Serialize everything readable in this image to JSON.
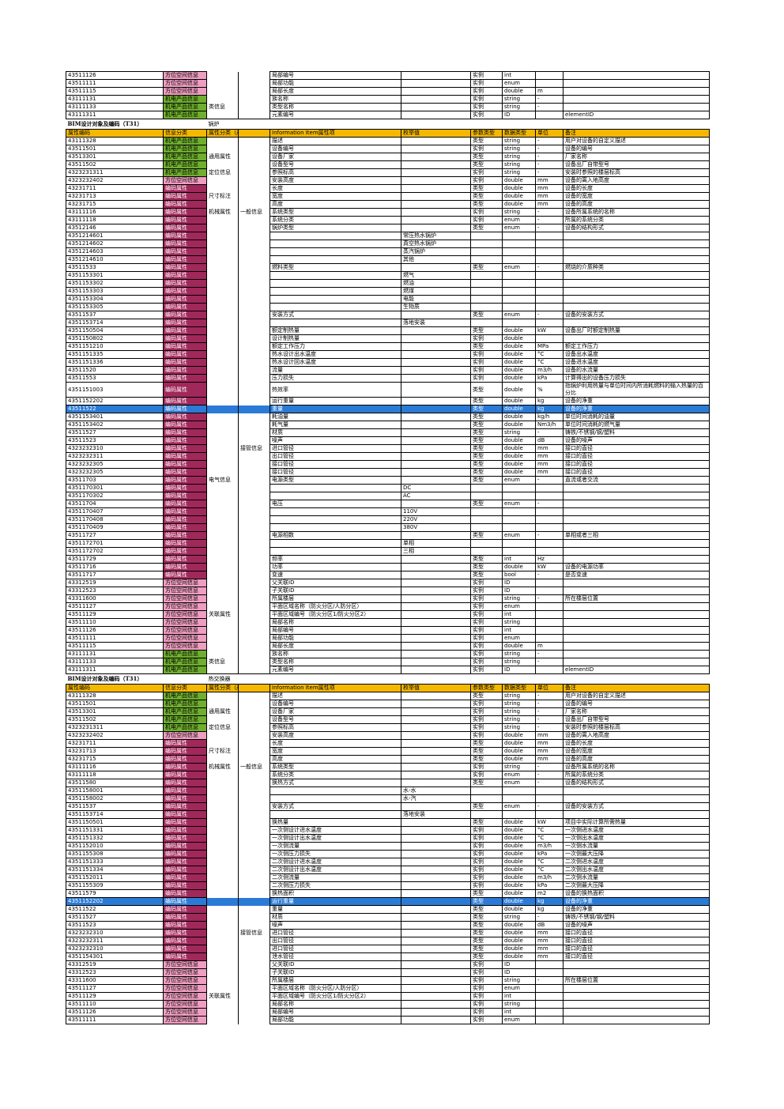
{
  "columns": [
    "属性编码",
    "信息分类",
    "属性分类（产品）",
    "",
    "Information Item属性项",
    "枚举值",
    "参数类型",
    "数据类型",
    "单位",
    "备注"
  ],
  "categories": {
    "loc": "方位空间信息",
    "prod": "机电产品信息",
    "code": "编码属性"
  },
  "rows": [
    {
      "type": "row",
      "code": "43511126",
      "cat": "loc",
      "c4": "局部编号",
      "c6": "实例",
      "c7": "int"
    },
    {
      "type": "row",
      "code": "43511111",
      "cat": "loc",
      "c4": "局部功能",
      "c6": "实例",
      "c7": "enum"
    },
    {
      "type": "row",
      "code": "43511115",
      "cat": "loc",
      "c4": "局部长度",
      "c6": "实例",
      "c7": "double",
      "c8": "m"
    },
    {
      "type": "row",
      "code": "43111131",
      "cat": "prod",
      "c2": "",
      "c4": "族名称",
      "c6": "实例",
      "c7": "string",
      "c8": "-"
    },
    {
      "type": "row",
      "code": "43111133",
      "cat": "prod",
      "c2": "类信息",
      "c4": "类型名称",
      "c6": "实例",
      "c7": "string",
      "c8": "-"
    },
    {
      "type": "row",
      "code": "43111311",
      "cat": "prod",
      "c4": "元素编号",
      "c6": "实例",
      "c7": "ID",
      "c9": "elementID"
    },
    {
      "type": "title",
      "text": "BIM设计对象及编码（T31）",
      "sub": "锅炉"
    },
    {
      "type": "hdr"
    },
    {
      "type": "row",
      "code": "43111328",
      "cat": "prod",
      "c4": "描述",
      "c6": "类型",
      "c7": "string",
      "c8": "-",
      "c9": "用户对设备的自定义描述"
    },
    {
      "type": "row",
      "code": "43511501",
      "cat": "prod",
      "c2": "",
      "c4": "设备编号",
      "c6": "实例",
      "c7": "string",
      "c8": "-",
      "c9": "设备的编号"
    },
    {
      "type": "row",
      "code": "43513301",
      "cat": "prod",
      "c2": "通用属性",
      "c4": "设备厂家",
      "c6": "类型",
      "c7": "string",
      "c8": "-",
      "c9": "厂家名称"
    },
    {
      "type": "row",
      "code": "43511502",
      "cat": "prod",
      "c4": "设备型号",
      "c6": "类型",
      "c7": "string",
      "c8": "-",
      "c9": "设备出厂自带型号"
    },
    {
      "type": "row",
      "code": "4323231311",
      "cat": "prod",
      "c2": "定位信息",
      "c4": "参照标高",
      "c6": "实例",
      "c7": "string",
      "c8": "-",
      "c9": "安装时参照的楼层标高"
    },
    {
      "type": "row",
      "code": "4323232402",
      "cat": "loc",
      "c4": "安装高度",
      "c6": "实例",
      "c7": "double",
      "c8": "mm",
      "c9": "设备的离入地高度"
    },
    {
      "type": "row",
      "code": "43231711",
      "cat": "code",
      "c4": "长度",
      "c6": "类型",
      "c7": "double",
      "c8": "mm",
      "c9": "设备的长度"
    },
    {
      "type": "row",
      "code": "43231713",
      "cat": "code",
      "c2": "尺寸标注",
      "c4": "宽度",
      "c6": "类型",
      "c7": "double",
      "c8": "mm",
      "c9": "设备的宽度"
    },
    {
      "type": "row",
      "code": "43231715",
      "cat": "code",
      "c4": "高度",
      "c6": "类型",
      "c7": "double",
      "c8": "mm",
      "c9": "设备的高度"
    },
    {
      "type": "row",
      "code": "43111116",
      "cat": "code",
      "c2": "机械属性",
      "c3": "一般信息",
      "c4": "系统类型",
      "c6": "实例",
      "c7": "string",
      "c8": "-",
      "c9": "设备所属系统的名称"
    },
    {
      "type": "row",
      "code": "43111118",
      "cat": "code",
      "c4": "系统分类",
      "c6": "实例",
      "c7": "enum",
      "c8": "-",
      "c9": "所属的系统分类"
    },
    {
      "type": "row",
      "code": "43512146",
      "cat": "code",
      "c4": "锅炉类型",
      "c6": "类型",
      "c7": "enum",
      "c8": "-",
      "c9": "设备的结构形式"
    },
    {
      "type": "row",
      "code": "4351214601",
      "cat": "code",
      "c5": "常压热水锅炉"
    },
    {
      "type": "row",
      "code": "4351214602",
      "cat": "code",
      "c5": "真空热水锅炉"
    },
    {
      "type": "row",
      "code": "4351214603",
      "cat": "code",
      "c5": "蒸汽锅炉"
    },
    {
      "type": "row",
      "code": "4351214610",
      "cat": "code",
      "c5": "其他"
    },
    {
      "type": "row",
      "code": "43511533",
      "cat": "code",
      "c4": "燃料类型",
      "c6": "类型",
      "c7": "enum",
      "c8": "-",
      "c9": "燃烧的介质种类"
    },
    {
      "type": "row",
      "code": "4351153301",
      "cat": "code",
      "c5": "燃气"
    },
    {
      "type": "row",
      "code": "4351153302",
      "cat": "code",
      "c5": "燃油"
    },
    {
      "type": "row",
      "code": "4351153303",
      "cat": "code",
      "c5": "燃煤"
    },
    {
      "type": "row",
      "code": "4351153304",
      "cat": "code",
      "c5": "电能"
    },
    {
      "type": "row",
      "code": "4351153305",
      "cat": "code",
      "c5": "生物质"
    },
    {
      "type": "row",
      "code": "43511537",
      "cat": "code",
      "c4": "安装方式",
      "c6": "类型",
      "c7": "enum",
      "c8": "-",
      "c9": "设备的安装方式"
    },
    {
      "type": "row",
      "code": "4351153714",
      "cat": "code",
      "c5": "落地安装"
    },
    {
      "type": "row",
      "code": "4351150504",
      "cat": "code",
      "c4": "额定制热量",
      "c6": "类型",
      "c7": "double",
      "c8": "kW",
      "c9": "设备出厂时额定制热量"
    },
    {
      "type": "row",
      "code": "4351150802",
      "cat": "code",
      "c4": "设计制热量",
      "c6": "实例",
      "c7": "double"
    },
    {
      "type": "row",
      "code": "4351151210",
      "cat": "code",
      "c4": "额定工作压力",
      "c6": "类型",
      "c7": "double",
      "c8": "MPa",
      "c9": "额定工作压力"
    },
    {
      "type": "row",
      "code": "4351151335",
      "cat": "code",
      "c4": "热水设计出水温度",
      "c6": "实例",
      "c7": "double",
      "c8": "°C",
      "c9": "设备出水温度"
    },
    {
      "type": "row",
      "code": "4351151336",
      "cat": "code",
      "c4": "热水设计回水温度",
      "c6": "实例",
      "c7": "double",
      "c8": "°C",
      "c9": "设备进水温度"
    },
    {
      "type": "row",
      "code": "43511520",
      "cat": "code",
      "c4": "流量",
      "c6": "实例",
      "c7": "double",
      "c8": "m3/h",
      "c9": "设备的水流量"
    },
    {
      "type": "row",
      "code": "43511553",
      "cat": "code",
      "c4": "压力损失",
      "c6": "实例",
      "c7": "double",
      "c8": "kPa",
      "c9": "计算得出的设备压力损失"
    },
    {
      "type": "row",
      "tall": true,
      "code": "4351151003",
      "cat": "code",
      "c4": "热效率",
      "c6": "类型",
      "c7": "double",
      "c8": "%",
      "c9": "指锅炉利用热量与单位时间内所消耗燃料的输入热量的百分比"
    },
    {
      "type": "row",
      "code": "4351152202",
      "cat": "code",
      "c4": "运行重量",
      "c6": "类型",
      "c7": "double",
      "c8": "kg",
      "c9": "设备的净重"
    },
    {
      "type": "row",
      "blue": true,
      "code": "43511522",
      "cat": "code",
      "c4": "重量",
      "c6": "类型",
      "c7": "double",
      "c8": "kg",
      "c9": "设备的净重"
    },
    {
      "type": "row",
      "code": "4351153401",
      "cat": "code",
      "c4": "耗油量",
      "c6": "类型",
      "c7": "double",
      "c8": "kg/h",
      "c9": "单位时间消耗的油量"
    },
    {
      "type": "row",
      "code": "4351153402",
      "cat": "code",
      "c4": "耗气量",
      "c6": "类型",
      "c7": "double",
      "c8": "Nm3/h",
      "c9": "单位时间消耗的燃气量"
    },
    {
      "type": "row",
      "code": "43511527",
      "cat": "code",
      "c4": "材质",
      "c6": "类型",
      "c7": "string",
      "c8": "-",
      "c9": "铸铁/不锈钢/钢/塑料"
    },
    {
      "type": "row",
      "code": "43511523",
      "cat": "code",
      "c4": "噪声",
      "c6": "类型",
      "c7": "double",
      "c8": "dB",
      "c9": "设备的噪声"
    },
    {
      "type": "row",
      "code": "4323232310",
      "cat": "code",
      "c3": "接管信息",
      "c4": "进口管径",
      "c6": "类型",
      "c7": "double",
      "c8": "mm",
      "c9": "接口的直径"
    },
    {
      "type": "row",
      "code": "4323232311",
      "cat": "code",
      "c4": "出口管径",
      "c6": "类型",
      "c7": "double",
      "c8": "mm",
      "c9": "接口的直径"
    },
    {
      "type": "row",
      "code": "4323232305",
      "cat": "code",
      "c4": "接口管径",
      "c6": "类型",
      "c7": "double",
      "c8": "mm",
      "c9": "接口的直径"
    },
    {
      "type": "row",
      "code": "4323232305",
      "cat": "code",
      "c4": "接口管径",
      "c6": "类型",
      "c7": "double",
      "c8": "mm",
      "c9": "接口的直径"
    },
    {
      "type": "row",
      "code": "43511703",
      "cat": "code",
      "c2": "电气信息",
      "c4": "电源类型",
      "c6": "类型",
      "c7": "enum",
      "c8": "-",
      "c9": "直流或者交流"
    },
    {
      "type": "row",
      "code": "4351170301",
      "cat": "code",
      "c5": "DC"
    },
    {
      "type": "row",
      "code": "4351170302",
      "cat": "code",
      "c5": "AC"
    },
    {
      "type": "row",
      "code": "43511704",
      "cat": "code",
      "c4": "电压",
      "c6": "类型",
      "c7": "enum",
      "c8": "-"
    },
    {
      "type": "row",
      "code": "4351170407",
      "cat": "code",
      "c5": "110V"
    },
    {
      "type": "row",
      "code": "4351170408",
      "cat": "code",
      "c5": "220V"
    },
    {
      "type": "row",
      "code": "4351170409",
      "cat": "code",
      "c5": "380V"
    },
    {
      "type": "row",
      "code": "43511727",
      "cat": "code",
      "c4": "电源相数",
      "c6": "类型",
      "c7": "enum",
      "c8": "-",
      "c9": "单相或者三相"
    },
    {
      "type": "row",
      "code": "4351172701",
      "cat": "code",
      "c5": "单相"
    },
    {
      "type": "row",
      "code": "4351172702",
      "cat": "code",
      "c5": "三相"
    },
    {
      "type": "row",
      "code": "43511729",
      "cat": "code",
      "c4": "频率",
      "c6": "类型",
      "c7": "int",
      "c8": "Hz"
    },
    {
      "type": "row",
      "code": "43511716",
      "cat": "code",
      "c4": "功率",
      "c6": "类型",
      "c7": "double",
      "c8": "kW",
      "c9": "设备的电源功率"
    },
    {
      "type": "row",
      "code": "43511717",
      "cat": "code",
      "c4": "变速",
      "c6": "类型",
      "c7": "bool",
      "c8": "-",
      "c9": "是否变速"
    },
    {
      "type": "row",
      "code": "43312519",
      "cat": "loc",
      "c4": "父关联ID",
      "c6": "实例",
      "c7": "ID"
    },
    {
      "type": "row",
      "code": "43312523",
      "cat": "loc",
      "c4": "子关联ID",
      "c6": "实例",
      "c7": "ID"
    },
    {
      "type": "row",
      "code": "43311600",
      "cat": "loc",
      "c4": "所属楼层",
      "c6": "实例",
      "c7": "string",
      "c8": "-",
      "c9": "所在楼层位置"
    },
    {
      "type": "row",
      "code": "43511127",
      "cat": "loc",
      "c4": "平面区域名称（防火分区/人防分区）",
      "c6": "实例",
      "c7": "enum"
    },
    {
      "type": "row",
      "code": "43511129",
      "cat": "loc",
      "c2": "关联属性",
      "c4": "平面区域编号（防火分区1/防火分区2）",
      "c6": "实例",
      "c7": "int"
    },
    {
      "type": "row",
      "code": "43511110",
      "cat": "loc",
      "c4": "局部名称",
      "c6": "实例",
      "c7": "string"
    },
    {
      "type": "row",
      "code": "43511126",
      "cat": "loc",
      "c4": "局部编号",
      "c6": "实例",
      "c7": "int"
    },
    {
      "type": "row",
      "code": "43511111",
      "cat": "loc",
      "c4": "局部功能",
      "c6": "实例",
      "c7": "enum"
    },
    {
      "type": "row",
      "code": "43511115",
      "cat": "loc",
      "c4": "局部长度",
      "c6": "实例",
      "c7": "double",
      "c8": "m"
    },
    {
      "type": "row",
      "code": "43111131",
      "cat": "prod",
      "c4": "族名称",
      "c6": "实例",
      "c7": "string",
      "c8": "-"
    },
    {
      "type": "row",
      "code": "43111133",
      "cat": "prod",
      "c2": "类信息",
      "c4": "类型名称",
      "c6": "实例",
      "c7": "string",
      "c8": "-"
    },
    {
      "type": "row",
      "code": "43111311",
      "cat": "prod",
      "c4": "元素编号",
      "c6": "实例",
      "c7": "ID",
      "c9": "elementID"
    },
    {
      "type": "title",
      "text": "BIM设计对象及编码（T31）",
      "sub": "热交换器"
    },
    {
      "type": "hdr"
    },
    {
      "type": "row",
      "code": "43111328",
      "cat": "prod",
      "c4": "描述",
      "c6": "类型",
      "c7": "string",
      "c8": "-",
      "c9": "用户对设备的自定义描述"
    },
    {
      "type": "row",
      "code": "43511501",
      "cat": "prod",
      "c4": "设备编号",
      "c6": "实例",
      "c7": "string",
      "c8": "-",
      "c9": "设备的编号"
    },
    {
      "type": "row",
      "code": "43513301",
      "cat": "prod",
      "c2": "通用属性",
      "c4": "设备厂家",
      "c6": "实例",
      "c7": "string",
      "c8": "-",
      "c9": "厂家名称"
    },
    {
      "type": "row",
      "code": "43511502",
      "cat": "prod",
      "c4": "设备型号",
      "c6": "实例",
      "c7": "string",
      "c8": "-",
      "c9": "设备出厂自带型号"
    },
    {
      "type": "row",
      "code": "4323231311",
      "cat": "prod",
      "c2": "定位信息",
      "c4": "参照标高",
      "c6": "实例",
      "c7": "string",
      "c8": "-",
      "c9": "安装时参照的楼层标高"
    },
    {
      "type": "row",
      "code": "4323232402",
      "cat": "loc",
      "c4": "安装高度",
      "c6": "实例",
      "c7": "double",
      "c8": "mm",
      "c9": "设备的离入地高度"
    },
    {
      "type": "row",
      "code": "43231711",
      "cat": "code",
      "c4": "长度",
      "c6": "类型",
      "c7": "double",
      "c8": "mm",
      "c9": "设备的长度"
    },
    {
      "type": "row",
      "code": "43231713",
      "cat": "code",
      "c2": "尺寸标注",
      "c4": "宽度",
      "c6": "类型",
      "c7": "double",
      "c8": "mm",
      "c9": "设备的宽度"
    },
    {
      "type": "row",
      "code": "43231715",
      "cat": "code",
      "c4": "高度",
      "c6": "类型",
      "c7": "double",
      "c8": "mm",
      "c9": "设备的高度"
    },
    {
      "type": "row",
      "code": "43111116",
      "cat": "code",
      "c2": "机械属性",
      "c3": "一般信息",
      "c4": "系统类型",
      "c6": "实例",
      "c7": "string",
      "c8": "-",
      "c9": "设备所属系统的名称"
    },
    {
      "type": "row",
      "code": "43111118",
      "cat": "code",
      "c4": "系统分类",
      "c6": "实例",
      "c7": "enum",
      "c8": "-",
      "c9": "所属的系统分类"
    },
    {
      "type": "row",
      "code": "43511580",
      "cat": "code",
      "c4": "换热方式",
      "c6": "类型",
      "c7": "enum",
      "c8": "-",
      "c9": "设备的结构形式"
    },
    {
      "type": "row",
      "code": "4351158001",
      "cat": "code",
      "c5": "水-水"
    },
    {
      "type": "row",
      "code": "4351158002",
      "cat": "code",
      "c5": "水-汽"
    },
    {
      "type": "row",
      "code": "43511537",
      "cat": "code",
      "c4": "安装方式",
      "c6": "类型",
      "c7": "enum",
      "c8": "-",
      "c9": "设备的安装方式"
    },
    {
      "type": "row",
      "code": "4351153714",
      "cat": "code",
      "c5": "落地安装"
    },
    {
      "type": "row",
      "code": "4351150501",
      "cat": "code",
      "c4": "换热量",
      "c6": "类型",
      "c7": "double",
      "c8": "kW",
      "c9": "项目中实际计算所需热量"
    },
    {
      "type": "row",
      "code": "4351151331",
      "cat": "code",
      "c4": "一次侧设计进水温度",
      "c6": "实例",
      "c7": "double",
      "c8": "°C",
      "c9": "一次侧进水温度"
    },
    {
      "type": "row",
      "code": "4351151332",
      "cat": "code",
      "c4": "一次侧设计出水温度",
      "c6": "实例",
      "c7": "double",
      "c8": "°C",
      "c9": "一次侧出水温度"
    },
    {
      "type": "row",
      "code": "4351152010",
      "cat": "code",
      "c4": "一次侧流量",
      "c6": "实例",
      "c7": "double",
      "c8": "m3/h",
      "c9": "一次侧水流量"
    },
    {
      "type": "row",
      "code": "4351155308",
      "cat": "code",
      "c4": "一次侧压力损失",
      "c6": "实例",
      "c7": "double",
      "c8": "kPa",
      "c9": "一次侧最大压降"
    },
    {
      "type": "row",
      "code": "4351151333",
      "cat": "code",
      "c4": "二次侧设计进水温度",
      "c6": "实例",
      "c7": "double",
      "c8": "°C",
      "c9": "二次侧进水温度"
    },
    {
      "type": "row",
      "code": "4351151334",
      "cat": "code",
      "c4": "二次侧设计出水温度",
      "c6": "实例",
      "c7": "double",
      "c8": "°C",
      "c9": "二次侧出水温度"
    },
    {
      "type": "row",
      "code": "4351152011",
      "cat": "code",
      "c4": "二次侧流量",
      "c6": "实例",
      "c7": "double",
      "c8": "m3/h",
      "c9": "二次侧水流量"
    },
    {
      "type": "row",
      "code": "4351155309",
      "cat": "code",
      "c4": "二次侧压力损失",
      "c6": "实例",
      "c7": "double",
      "c8": "kPa",
      "c9": "二次侧最大压降"
    },
    {
      "type": "row",
      "code": "43511579",
      "cat": "code",
      "c4": "换热面积",
      "c6": "类型",
      "c7": "double",
      "c8": "m2",
      "c9": "设备的换热面积"
    },
    {
      "type": "row",
      "blue": true,
      "code": "4351152202",
      "cat": "code",
      "c4": "运行重量",
      "c6": "类型",
      "c7": "double",
      "c8": "kg",
      "c9": "设备的净重"
    },
    {
      "type": "row",
      "code": "43511522",
      "cat": "code",
      "c4": "重量",
      "c6": "类型",
      "c7": "double",
      "c8": "kg",
      "c9": "设备的净重"
    },
    {
      "type": "row",
      "code": "43511527",
      "cat": "code",
      "c4": "材质",
      "c6": "类型",
      "c7": "string",
      "c8": "-",
      "c9": "铸铁/不锈钢/钢/塑料"
    },
    {
      "type": "row",
      "code": "43511523",
      "cat": "code",
      "c4": "噪声",
      "c6": "类型",
      "c7": "double",
      "c8": "dB",
      "c9": "设备的噪声"
    },
    {
      "type": "row",
      "code": "4323232310",
      "cat": "code",
      "c3": "接管信息",
      "c4": "进口管径",
      "c6": "类型",
      "c7": "double",
      "c8": "mm",
      "c9": "接口的直径"
    },
    {
      "type": "row",
      "code": "4323232311",
      "cat": "code",
      "c4": "出口管径",
      "c6": "类型",
      "c7": "double",
      "c8": "mm",
      "c9": "接口的直径"
    },
    {
      "type": "row",
      "code": "4323232310",
      "cat": "code",
      "c4": "进口管径",
      "c6": "类型",
      "c7": "double",
      "c8": "mm",
      "c9": "接口的直径"
    },
    {
      "type": "row",
      "code": "4351154301",
      "cat": "code",
      "c4": "泄水管径",
      "c6": "类型",
      "c7": "double",
      "c8": "mm",
      "c9": "接口的直径"
    },
    {
      "type": "row",
      "code": "43312519",
      "cat": "loc",
      "c4": "父关联ID",
      "c6": "实例",
      "c7": "ID"
    },
    {
      "type": "row",
      "code": "43312523",
      "cat": "loc",
      "c4": "子关联ID",
      "c6": "实例",
      "c7": "ID"
    },
    {
      "type": "row",
      "code": "43311600",
      "cat": "loc",
      "c4": "所属楼层",
      "c6": "实例",
      "c7": "string",
      "c8": "-",
      "c9": "所在楼层位置"
    },
    {
      "type": "row",
      "code": "43511127",
      "cat": "loc",
      "c4": "平面区域名称（防火分区/人防分区）",
      "c6": "实例",
      "c7": "enum"
    },
    {
      "type": "row",
      "code": "43511129",
      "cat": "loc",
      "c2": "关联属性",
      "c4": "平面区域编号（防火分区1/防火分区2）",
      "c6": "实例",
      "c7": "int"
    },
    {
      "type": "row",
      "code": "43511110",
      "cat": "loc",
      "c4": "局部名称",
      "c6": "实例",
      "c7": "string"
    },
    {
      "type": "row",
      "code": "43511126",
      "cat": "loc",
      "c4": "局部编号",
      "c6": "实例",
      "c7": "int"
    },
    {
      "type": "row",
      "code": "43511111",
      "cat": "loc",
      "c4": "局部功能",
      "c6": "实例",
      "c7": "enum"
    }
  ]
}
